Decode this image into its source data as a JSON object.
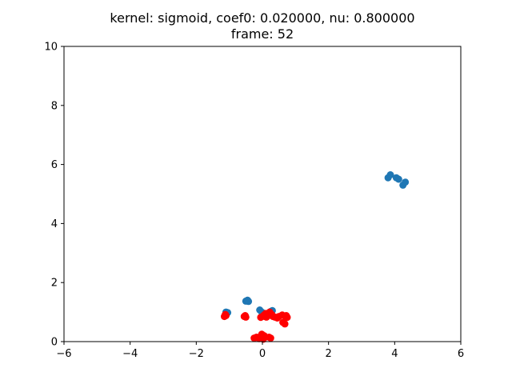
{
  "chart_data": {
    "type": "scatter",
    "title_line1": "kernel:  sigmoid, coef0: 0.020000, nu:  0.800000",
    "title_line2": "frame: 52",
    "xlabel": "",
    "ylabel": "",
    "xlim": [
      -6,
      6
    ],
    "ylim": [
      0,
      10
    ],
    "xticks": [
      -6,
      -4,
      -2,
      0,
      2,
      4,
      6
    ],
    "yticks": [
      0,
      2,
      4,
      6,
      8,
      10
    ],
    "grid": false,
    "series": [
      {
        "color": "#1f77b4",
        "points": [
          [
            3.8,
            5.55
          ],
          [
            3.87,
            5.65
          ],
          [
            4.05,
            5.55
          ],
          [
            4.12,
            5.5
          ],
          [
            4.25,
            5.3
          ],
          [
            4.32,
            5.4
          ],
          [
            -0.5,
            1.37
          ],
          [
            -0.42,
            1.36
          ],
          [
            -0.45,
            1.4
          ],
          [
            -1.1,
            1.0
          ],
          [
            -1.05,
            0.98
          ],
          [
            -0.08,
            1.07
          ],
          [
            -0.02,
            1.0
          ],
          [
            0.3,
            1.05
          ],
          [
            0.25,
            1.02
          ]
        ]
      },
      {
        "color": "#ff0000",
        "points": [
          [
            -1.15,
            0.85
          ],
          [
            -1.12,
            0.92
          ],
          [
            -1.1,
            0.88
          ],
          [
            -0.55,
            0.85
          ],
          [
            -0.52,
            0.88
          ],
          [
            -0.5,
            0.83
          ],
          [
            -0.05,
            0.82
          ],
          [
            0.0,
            0.85
          ],
          [
            0.05,
            0.9
          ],
          [
            0.1,
            0.95
          ],
          [
            0.12,
            0.83
          ],
          [
            0.18,
            0.88
          ],
          [
            0.22,
            1.0
          ],
          [
            0.28,
            0.92
          ],
          [
            0.32,
            0.85
          ],
          [
            0.38,
            0.83
          ],
          [
            0.45,
            0.8
          ],
          [
            0.5,
            0.85
          ],
          [
            0.6,
            0.9
          ],
          [
            0.62,
            0.65
          ],
          [
            0.68,
            0.6
          ],
          [
            0.7,
            0.85
          ],
          [
            0.75,
            0.82
          ],
          [
            0.72,
            0.88
          ],
          [
            -0.25,
            0.12
          ],
          [
            -0.18,
            0.15
          ],
          [
            -0.1,
            0.1
          ],
          [
            -0.05,
            0.18
          ],
          [
            0.0,
            0.12
          ],
          [
            0.05,
            0.2
          ],
          [
            0.08,
            0.15
          ],
          [
            -0.02,
            0.25
          ],
          [
            0.03,
            0.08
          ],
          [
            0.2,
            0.15
          ],
          [
            0.25,
            0.12
          ]
        ]
      }
    ]
  }
}
